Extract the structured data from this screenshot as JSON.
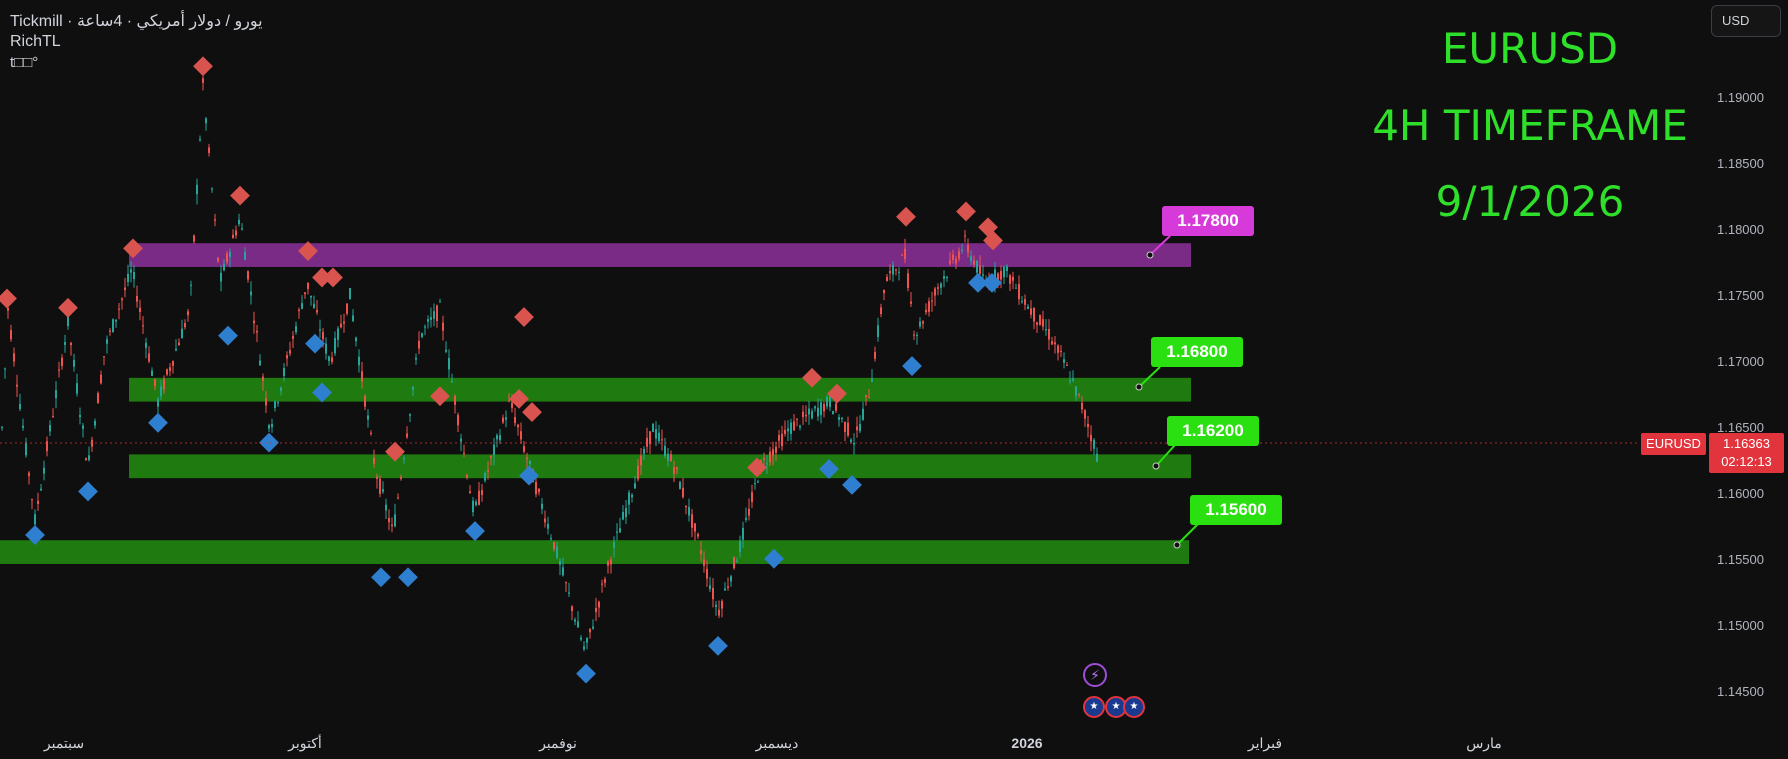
{
  "header": {
    "line1": "Tickmill · يورو / دولار أمريكي · 4ساعة",
    "line2": "RichTL",
    "line3": "t□□°"
  },
  "currency_button": "USD",
  "title_overlay": {
    "pair": "EURUSD",
    "timeframe": "4H TIMEFRAME",
    "date": "9/1/2026"
  },
  "price_axis": [
    "1.19000",
    "1.18500",
    "1.18000",
    "1.17500",
    "1.17000",
    "1.16500",
    "1.16000",
    "1.15500",
    "1.15000",
    "1.14500"
  ],
  "time_axis": [
    "سبتمبر",
    "أكتوبر",
    "نوفمبر",
    "ديسمبر",
    "2026",
    "فبراير",
    "مارس"
  ],
  "levels": [
    {
      "label": "1.17800",
      "color": "#e040e0"
    },
    {
      "label": "1.16800",
      "color": "#28e010"
    },
    {
      "label": "1.16200",
      "color": "#28e010"
    },
    {
      "label": "1.15600",
      "color": "#28e010"
    }
  ],
  "current_price": {
    "symbol": "EURUSD",
    "price": "1.16363",
    "countdown": "02:12:13"
  },
  "colors": {
    "bull": "#26a69a",
    "bear": "#ef5350",
    "resistance_zone": "#7a2b86",
    "support_zone": "#1f7a10",
    "top_marker": "#d9534f",
    "bottom_marker": "#2f7fd0",
    "title": "#2fe02a"
  },
  "icons": {
    "flash": "lightning-icon",
    "flags": "us-flag-icon"
  },
  "chart_data": {
    "type": "candlestick",
    "symbol": "EURUSD",
    "timeframe": "4H",
    "ylim": [
      1.1432,
      1.1975
    ],
    "zones": [
      {
        "type": "resistance",
        "from": 1.1772,
        "to": 1.179
      },
      {
        "type": "support",
        "from": 1.167,
        "to": 1.1688
      },
      {
        "type": "support",
        "from": 1.1612,
        "to": 1.163
      },
      {
        "type": "support",
        "from": 1.1547,
        "to": 1.1565
      }
    ],
    "swing_highs": [
      1.1742,
      1.1735,
      1.178,
      1.1918,
      1.182,
      1.1778,
      1.1758,
      1.1758,
      1.1728,
      1.1626,
      1.1668,
      1.1666,
      1.1656,
      1.1614,
      1.1682,
      1.167,
      1.1804,
      1.1808,
      1.1796,
      1.1786
    ],
    "swing_lows": [
      1.1575,
      1.1608,
      1.166,
      1.1726,
      1.1645,
      1.172,
      1.1683,
      1.1543,
      1.1543,
      1.1578,
      1.162,
      1.147,
      1.1491,
      1.1557,
      1.1625,
      1.1613,
      1.1703,
      1.1766,
      1.1766
    ],
    "last_price": 1.16363
  }
}
